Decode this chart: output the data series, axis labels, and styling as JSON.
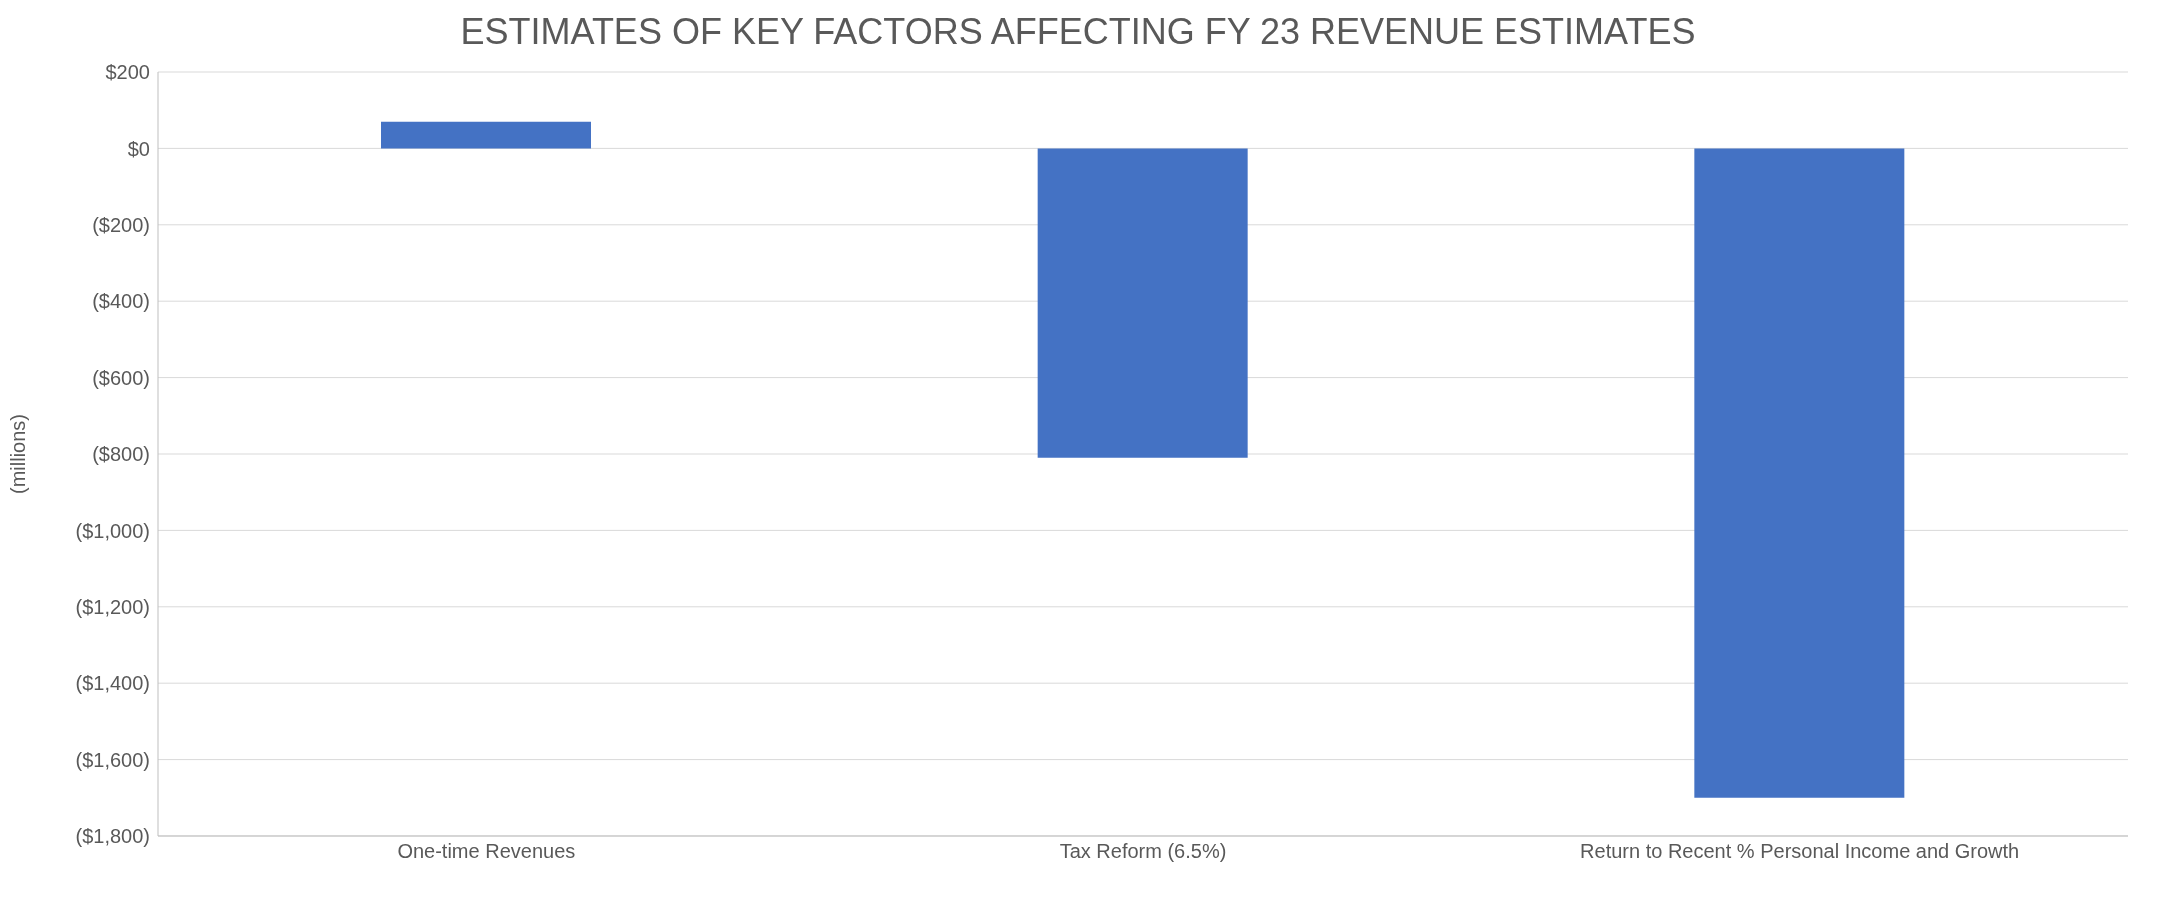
{
  "chart_data": {
    "type": "bar",
    "title": "ESTIMATES OF KEY FACTORS AFFECTING FY 23 REVENUE ESTIMATES",
    "ylabel": "(millions)",
    "categories": [
      "One-time Revenues",
      "Tax Reform (6.5%)",
      "Return to Recent % Personal Income and Growth"
    ],
    "values": [
      70,
      -810,
      -1700
    ],
    "color": "#4472c4",
    "ylim": [
      -1800,
      200
    ],
    "yticks": [
      {
        "value": -1800,
        "label": "($1,800)"
      },
      {
        "value": -1600,
        "label": "($1,600)"
      },
      {
        "value": -1400,
        "label": "($1,400)"
      },
      {
        "value": -1200,
        "label": "($1,200)"
      },
      {
        "value": -1000,
        "label": "($1,000)"
      },
      {
        "value": -800,
        "label": "($800)"
      },
      {
        "value": -600,
        "label": "($600)"
      },
      {
        "value": -400,
        "label": "($400)"
      },
      {
        "value": -200,
        "label": "($200)"
      },
      {
        "value": 0,
        "label": "$0"
      },
      {
        "value": 200,
        "label": "$200"
      }
    ],
    "grid": "y"
  }
}
